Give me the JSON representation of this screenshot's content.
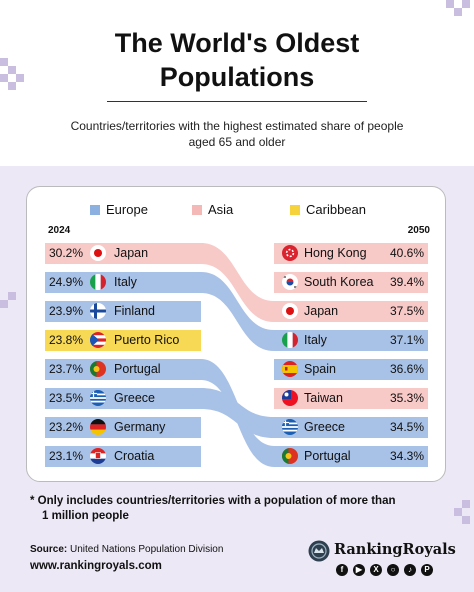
{
  "title_line1": "The World's Oldest",
  "title_line2": "Populations",
  "subtitle_line1": "Countries/territories with the highest estimated share of people",
  "subtitle_line2": "aged 65 and older",
  "colors": {
    "europe": "#a8c1e6",
    "asia": "#f7c9c7",
    "caribbean": "#f7d956",
    "europe_legend": "#8cb0df",
    "asia_legend": "#f4b8b6",
    "caribbean_legend": "#f6d33c"
  },
  "chart_data": {
    "type": "slope",
    "legend": [
      {
        "name": "Europe",
        "color_key": "europe"
      },
      {
        "name": "Asia",
        "color_key": "asia"
      },
      {
        "name": "Caribbean",
        "color_key": "caribbean"
      }
    ],
    "left_year": "2024",
    "right_year": "2050",
    "left": [
      {
        "name": "Japan",
        "value": 30.2,
        "label": "30.2%",
        "region": "asia",
        "flag": "japan-flag"
      },
      {
        "name": "Italy",
        "value": 24.9,
        "label": "24.9%",
        "region": "europe",
        "flag": "italy-flag"
      },
      {
        "name": "Finland",
        "value": 23.9,
        "label": "23.9%",
        "region": "europe",
        "flag": "finland-flag"
      },
      {
        "name": "Puerto Rico",
        "value": 23.8,
        "label": "23.8%",
        "region": "caribbean",
        "flag": "puerto-rico-flag"
      },
      {
        "name": "Portugal",
        "value": 23.7,
        "label": "23.7%",
        "region": "europe",
        "flag": "portugal-flag"
      },
      {
        "name": "Greece",
        "value": 23.5,
        "label": "23.5%",
        "region": "europe",
        "flag": "greece-flag"
      },
      {
        "name": "Germany",
        "value": 23.2,
        "label": "23.2%",
        "region": "europe",
        "flag": "germany-flag"
      },
      {
        "name": "Croatia",
        "value": 23.1,
        "label": "23.1%",
        "region": "europe",
        "flag": "croatia-flag"
      }
    ],
    "right": [
      {
        "name": "Hong Kong",
        "value": 40.6,
        "label": "40.6%",
        "region": "asia",
        "flag": "hong-kong-flag"
      },
      {
        "name": "South Korea",
        "value": 39.4,
        "label": "39.4%",
        "region": "asia",
        "flag": "south-korea-flag"
      },
      {
        "name": "Japan",
        "value": 37.5,
        "label": "37.5%",
        "region": "asia",
        "flag": "japan-flag"
      },
      {
        "name": "Italy",
        "value": 37.1,
        "label": "37.1%",
        "region": "europe",
        "flag": "italy-flag"
      },
      {
        "name": "Spain",
        "value": 36.6,
        "label": "36.6%",
        "region": "europe",
        "flag": "spain-flag"
      },
      {
        "name": "Taiwan",
        "value": 35.3,
        "label": "35.3%",
        "region": "asia",
        "flag": "taiwan-flag"
      },
      {
        "name": "Greece",
        "value": 34.5,
        "label": "34.5%",
        "region": "europe",
        "flag": "greece-flag"
      },
      {
        "name": "Portugal",
        "value": 34.3,
        "label": "34.3%",
        "region": "europe",
        "flag": "portugal-flag"
      }
    ],
    "links": [
      {
        "from": "Japan",
        "to": "Japan",
        "region": "asia"
      },
      {
        "from": "Italy",
        "to": "Italy",
        "region": "europe"
      },
      {
        "from": "Portugal",
        "to": "Portugal",
        "region": "europe"
      },
      {
        "from": "Greece",
        "to": "Greece",
        "region": "europe"
      }
    ]
  },
  "note_line1": "* Only includes countries/territories with a population of more than",
  "note_line2": "1 million people",
  "source_label": "Source:",
  "source_text": "United Nations Population Division",
  "website": "www.rankingroyals.com",
  "brand_name": "RankingRoyals",
  "social_icons": [
    "facebook-icon",
    "youtube-icon",
    "x-icon",
    "instagram-icon",
    "tiktok-icon",
    "pinterest-icon"
  ]
}
